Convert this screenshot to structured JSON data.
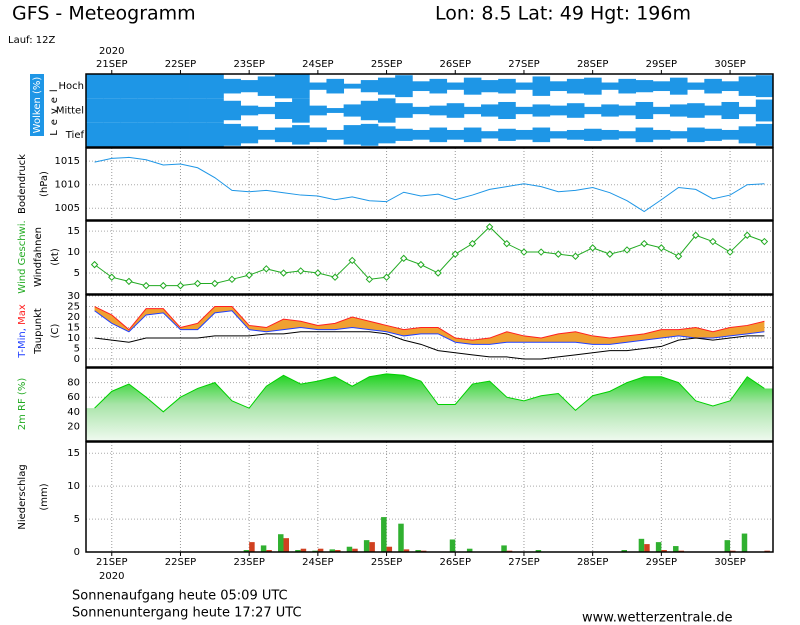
{
  "header": {
    "title": "GFS - Meteogramm",
    "location": "Lon: 8.5 Lat: 49 Hgt: 196m",
    "run": "Lauf: 12Z"
  },
  "footer": {
    "sunrise": "Sonnenaufgang heute 05:09 UTC",
    "sunset": "Sonnenuntergang heute 17:27 UTC",
    "source": "www.wetterzentrale.de"
  },
  "chart_data": [
    {
      "type": "cloud",
      "y_label": "Wolken (%)",
      "level_label": "Level",
      "color": "#1e96e6",
      "x_year": "2020",
      "categories": [
        null,
        "21SEP",
        null,
        null,
        null,
        "22SEP",
        null,
        null,
        null,
        "23SEP",
        null,
        null,
        null,
        "24SEP",
        null,
        null,
        null,
        "25SEP",
        null,
        null,
        null,
        "26SEP",
        null,
        null,
        null,
        "27SEP",
        null,
        null,
        null,
        "28SEP",
        null,
        null,
        null,
        "29SEP",
        null,
        null,
        null,
        "30SEP",
        null,
        null
      ],
      "series": [
        {
          "name": "Hoch",
          "values": [
            100,
            100,
            100,
            100,
            100,
            100,
            100,
            100,
            60,
            50,
            80,
            100,
            100,
            30,
            60,
            20,
            50,
            70,
            90,
            40,
            60,
            30,
            70,
            50,
            60,
            30,
            80,
            40,
            60,
            70,
            30,
            60,
            50,
            40,
            70,
            30,
            60,
            40,
            80,
            90
          ]
        },
        {
          "name": "Mittel",
          "values": [
            100,
            100,
            100,
            100,
            100,
            100,
            100,
            100,
            80,
            40,
            30,
            70,
            100,
            40,
            20,
            50,
            80,
            100,
            60,
            30,
            40,
            60,
            30,
            50,
            70,
            30,
            50,
            40,
            60,
            30,
            50,
            40,
            70,
            30,
            50,
            60,
            40,
            70,
            30,
            90
          ]
        },
        {
          "name": "Tief",
          "values": [
            100,
            100,
            100,
            100,
            100,
            100,
            100,
            100,
            90,
            70,
            40,
            60,
            80,
            60,
            40,
            80,
            90,
            70,
            50,
            40,
            60,
            40,
            60,
            30,
            50,
            40,
            60,
            30,
            40,
            50,
            40,
            30,
            60,
            40,
            30,
            60,
            50,
            40,
            70,
            90
          ]
        }
      ]
    },
    {
      "type": "line",
      "y_label": "Bodendruck",
      "y_unit": "(hPa)",
      "ylim": [
        1002.5,
        1017.8
      ],
      "yticks": [
        1005,
        1010,
        1015
      ],
      "grid": true,
      "series": [
        {
          "color": "#1e96e6",
          "values": [
            1014.8,
            1015.6,
            1015.8,
            1015.3,
            1014.2,
            1014.4,
            1013.6,
            1011.5,
            1008.8,
            1008.5,
            1008.8,
            1008.3,
            1007.8,
            1007.6,
            1006.8,
            1007.4,
            1006.6,
            1006.4,
            1008.4,
            1007.6,
            1008,
            1006.8,
            1007.8,
            1009,
            1009.6,
            1010.2,
            1009.6,
            1008.5,
            1008.8,
            1009.4,
            1008.3,
            1006.6,
            1004.3,
            1006.8,
            1009.4,
            1009,
            1007,
            1007.8,
            1010,
            1010.2
          ]
        }
      ]
    },
    {
      "type": "line",
      "y_unit": "(kt)",
      "y_label2": "Windfahnen",
      "ylim": [
        0,
        17.4
      ],
      "yticks": [
        5,
        10,
        15
      ],
      "grid": true,
      "markers": true,
      "series": [
        {
          "name": "Wind Geschwi.",
          "color": "#22aa22",
          "values": [
            7,
            4,
            3,
            2,
            2,
            2,
            2.5,
            2.5,
            3.5,
            4.5,
            6,
            5,
            5.5,
            5,
            4,
            8,
            3.5,
            4,
            8.5,
            7,
            5,
            9.5,
            12,
            16,
            12,
            10,
            10,
            9.5,
            9,
            11,
            9.5,
            10.5,
            12,
            11,
            9,
            14,
            12.5,
            10,
            14,
            12.5
          ]
        }
      ]
    },
    {
      "type": "range",
      "y_unit": "(C)",
      "ylim": [
        -3.8,
        30.5
      ],
      "yticks": [
        0,
        5,
        10,
        15,
        20,
        25,
        30
      ],
      "grid": true,
      "range_color": "#f0a030",
      "series": [
        {
          "name": "T-Min,",
          "color": "#2040ff",
          "values": [
            23,
            17,
            13,
            21,
            22,
            14,
            14,
            22,
            23,
            14,
            13,
            14,
            15,
            14,
            14,
            15,
            14,
            13,
            11,
            12,
            12,
            8,
            7,
            7,
            8,
            8,
            8,
            8,
            8,
            7,
            7,
            8,
            9,
            10,
            11,
            10,
            10,
            11,
            12,
            13
          ]
        },
        {
          "name": "Max",
          "color": "#ff2020",
          "values": [
            25,
            21,
            14,
            24,
            24,
            15,
            17,
            25,
            25,
            16,
            15,
            19,
            18,
            16,
            17,
            20,
            18,
            16,
            14,
            15,
            15,
            10,
            9,
            10,
            13,
            11,
            10,
            12,
            13,
            11,
            10,
            11,
            12,
            14,
            14,
            15,
            13,
            15,
            16,
            18
          ]
        },
        {
          "name": "Taupunkt",
          "color": "#000000",
          "values": [
            10,
            9,
            8,
            10,
            10,
            10,
            10,
            11,
            11,
            11,
            12,
            12,
            13,
            13,
            13,
            13,
            13,
            12,
            9,
            7,
            4,
            3,
            2,
            1,
            1,
            0,
            0,
            1,
            2,
            3,
            4,
            4,
            5,
            6,
            9,
            10,
            9,
            10,
            11,
            11
          ]
        }
      ]
    },
    {
      "type": "area",
      "ylim": [
        0,
        100
      ],
      "yticks": [
        20,
        40,
        60,
        80
      ],
      "grid": true,
      "area_color": "#00d000",
      "series": [
        {
          "name": "2m RF (%)",
          "color": "#22aa22",
          "values": [
            45,
            68,
            78,
            60,
            40,
            60,
            72,
            80,
            55,
            45,
            75,
            90,
            78,
            82,
            88,
            75,
            88,
            92,
            90,
            82,
            50,
            50,
            78,
            82,
            60,
            55,
            62,
            65,
            42,
            62,
            68,
            80,
            88,
            88,
            80,
            55,
            48,
            55,
            88,
            72
          ]
        }
      ]
    },
    {
      "type": "bar",
      "y_label": "Niederschlag",
      "y_unit": "(mm)",
      "ylim": [
        0,
        16.7
      ],
      "yticks": [
        0,
        5,
        10,
        15
      ],
      "grid": true,
      "x_year": "2020",
      "categories": [
        null,
        "21SEP",
        null,
        null,
        null,
        "22SEP",
        null,
        null,
        null,
        "23SEP",
        null,
        null,
        null,
        "24SEP",
        null,
        null,
        null,
        "25SEP",
        null,
        null,
        null,
        "26SEP",
        null,
        null,
        null,
        "27SEP",
        null,
        null,
        null,
        "28SEP",
        null,
        null,
        null,
        "29SEP",
        null,
        null,
        null,
        "30SEP",
        null,
        null
      ],
      "series": [
        {
          "color": "#30b030",
          "values": [
            0,
            0,
            0,
            0,
            0,
            0,
            0,
            0,
            0,
            0.3,
            1,
            2.7,
            0.3,
            0.2,
            0.4,
            0.8,
            1.8,
            5.3,
            4.3,
            0.3,
            0,
            1.9,
            0.5,
            0,
            1,
            0,
            0.3,
            0,
            0,
            0,
            0,
            0.3,
            2,
            1.5,
            0.9,
            0,
            0,
            1.8,
            2.8,
            0
          ]
        },
        {
          "color": "#d04020",
          "values": [
            0,
            0,
            0,
            0,
            0,
            0,
            0,
            0,
            0,
            1.5,
            0.3,
            2.1,
            0.5,
            0.5,
            0.3,
            0.5,
            1.5,
            0.8,
            0.4,
            0.2,
            0,
            0,
            0,
            0,
            0.2,
            0,
            0,
            0,
            0,
            0,
            0,
            0,
            1.2,
            0.3,
            0.2,
            0,
            0,
            0.2,
            0,
            0.2
          ]
        }
      ]
    }
  ]
}
